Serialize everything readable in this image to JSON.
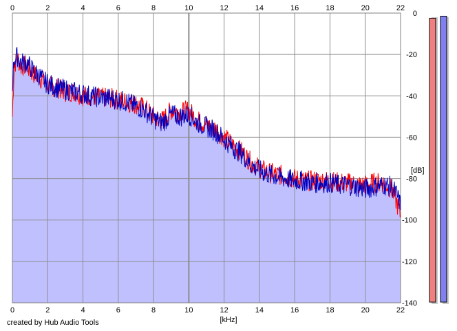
{
  "credit": "created by Hub Audio Tools",
  "colors": {
    "fill": "#c0c0ff",
    "left": "#ff0000",
    "right": "#0000c0",
    "grid": "#8c8c8c",
    "meter_left": "#f08080",
    "meter_right": "#8080f0"
  },
  "chart_data": {
    "type": "line",
    "title": "",
    "xlabel": "[kHz]",
    "ylabel": "[dB]",
    "xlim": [
      0,
      22
    ],
    "ylim": [
      -140,
      0
    ],
    "x_ticks": [
      "0",
      "2",
      "4",
      "6",
      "8",
      "10",
      "12",
      "14",
      "16",
      "18",
      "20",
      "22"
    ],
    "y_ticks": [
      "0",
      "-20",
      "-40",
      "-60",
      "-80",
      "-100",
      "-120",
      "-140"
    ],
    "grid": true,
    "series": [
      {
        "x": [
          0,
          0.1,
          0.3,
          0.5,
          0.8,
          1.0,
          1.3,
          1.5,
          1.8,
          2.0,
          2.5,
          3.0,
          3.5,
          4.0,
          4.5,
          5.0,
          5.5,
          6.0,
          6.5,
          7.0,
          7.5,
          8.0,
          8.5,
          9.0,
          9.5,
          10.0,
          10.5,
          11.0,
          11.5,
          12.0,
          12.5,
          13.0,
          13.5,
          14.0,
          14.5,
          15.0,
          15.5,
          16.0,
          16.5,
          17.0,
          17.5,
          18.0,
          18.5,
          19.0,
          19.5,
          20.0,
          20.5,
          21.0,
          21.5,
          21.8,
          22.0
        ],
        "values": [
          -50,
          -25,
          -22,
          -26,
          -25,
          -28,
          -30,
          -31,
          -33,
          -35,
          -36,
          -38,
          -38,
          -40,
          -40,
          -41,
          -41,
          -42,
          -43,
          -44,
          -46,
          -50,
          -52,
          -47,
          -48,
          -47,
          -52,
          -54,
          -56,
          -60,
          -64,
          -67,
          -72,
          -75,
          -77,
          -78,
          -79,
          -80,
          -81,
          -81,
          -81,
          -81,
          -82,
          -82,
          -83,
          -83,
          -82,
          -82,
          -85,
          -92,
          -98
        ]
      },
      {
        "x": [
          0,
          0.1,
          0.3,
          0.5,
          0.8,
          1.0,
          1.3,
          1.5,
          1.8,
          2.0,
          2.5,
          3.0,
          3.5,
          4.0,
          4.5,
          5.0,
          5.5,
          6.0,
          6.5,
          7.0,
          7.5,
          8.0,
          8.5,
          9.0,
          9.5,
          10.0,
          10.5,
          11.0,
          11.5,
          12.0,
          12.5,
          13.0,
          13.5,
          14.0,
          14.5,
          15.0,
          15.5,
          16.0,
          16.5,
          17.0,
          17.5,
          18.0,
          18.5,
          19.0,
          19.5,
          20.0,
          20.5,
          21.0,
          21.5,
          21.8,
          22.0
        ],
        "values": [
          -35,
          -22,
          -21,
          -24,
          -24,
          -26,
          -29,
          -30,
          -33,
          -34,
          -36,
          -37,
          -38,
          -39,
          -40,
          -41,
          -41,
          -42,
          -43,
          -45,
          -47,
          -51,
          -53,
          -49,
          -50,
          -49,
          -53,
          -55,
          -57,
          -61,
          -65,
          -68,
          -73,
          -76,
          -78,
          -79,
          -80,
          -81,
          -81,
          -82,
          -82,
          -82,
          -83,
          -83,
          -84,
          -85,
          -84,
          -83,
          -84,
          -88,
          -93
        ]
      }
    ],
    "meters": {
      "ylim": [
        -140,
        0
      ],
      "left": -1.5,
      "right": -0.5
    }
  }
}
